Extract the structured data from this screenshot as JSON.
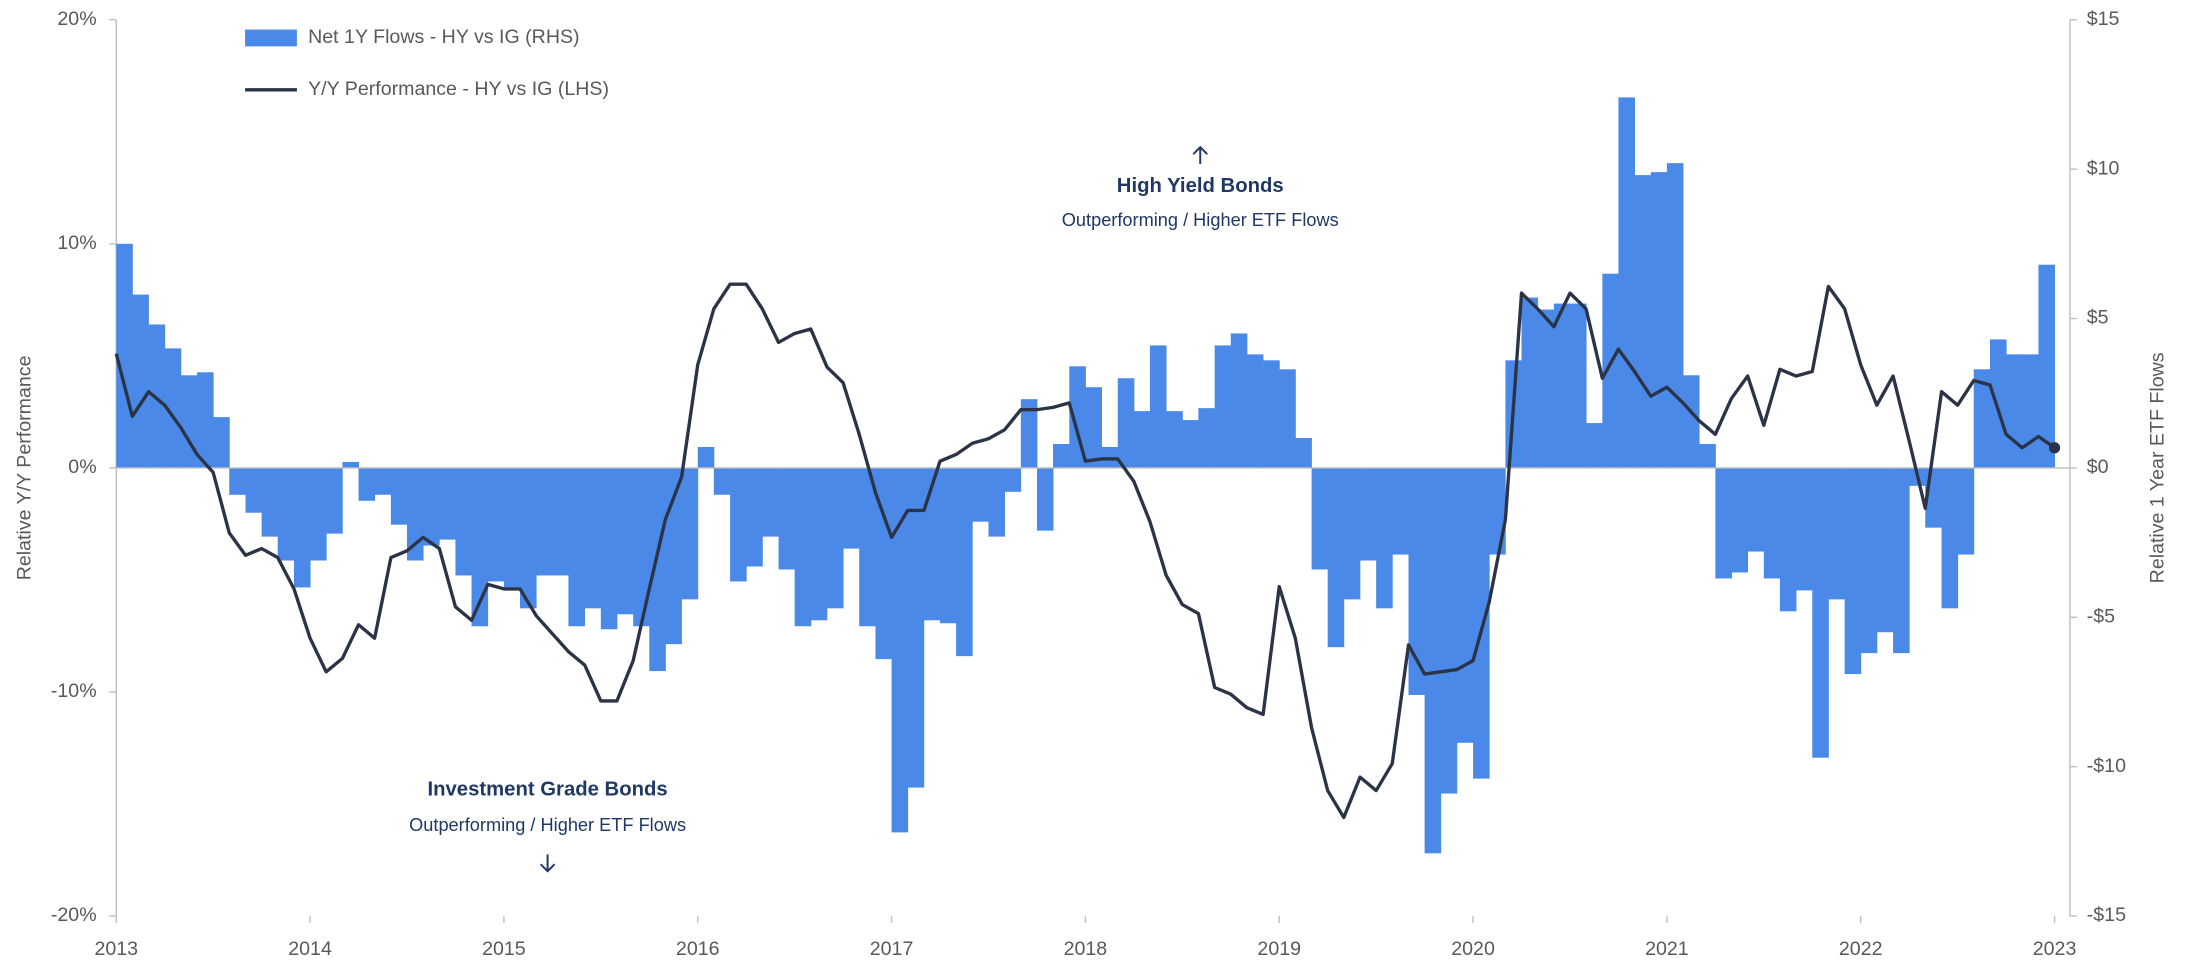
{
  "chart_data": {
    "type": "bar",
    "ylabel": "Relative Y/Y Performance",
    "y2label": "Relative 1 Year ETF Flows",
    "annotations": [
      {
        "title": "High Yield Bonds",
        "text": "Outperforming / Higher ETF Flows"
      },
      {
        "title": "Investment Grade Bonds",
        "text": "Outperforming / Higher ETF Flows"
      }
    ],
    "xlim": [
      2013,
      2023
    ],
    "xticks": [
      2013,
      2014,
      2015,
      2016,
      2017,
      2018,
      2019,
      2020,
      2021,
      2022,
      2023
    ],
    "ylim": [
      -20,
      20
    ],
    "yticks": [
      {
        "value": -20,
        "label": "-20%"
      },
      {
        "value": -10,
        "label": "-10%"
      },
      {
        "value": 0,
        "label": "0%"
      },
      {
        "value": 10,
        "label": "10%"
      },
      {
        "value": 20,
        "label": "20%"
      }
    ],
    "y2lim": [
      -15,
      15
    ],
    "y2ticks": [
      {
        "value": -15,
        "label": "-$15"
      },
      {
        "value": -10,
        "label": "-$10"
      },
      {
        "value": -5,
        "label": "-$5"
      },
      {
        "value": 0,
        "label": "$0"
      },
      {
        "value": 5,
        "label": "$5"
      },
      {
        "value": 10,
        "label": "$10"
      },
      {
        "value": 15,
        "label": "$15"
      }
    ],
    "legend": "top-left",
    "series": [
      {
        "name": "Net 1Y Flows - HY vs IG (RHS)",
        "type": "bar",
        "axis": "y2",
        "color": "#4a89e8",
        "x": [
          2013,
          2013.083,
          2013.167,
          2013.25,
          2013.333,
          2013.417,
          2013.5,
          2013.583,
          2013.667,
          2013.75,
          2013.833,
          2013.917,
          2014,
          2014.083,
          2014.167,
          2014.25,
          2014.333,
          2014.417,
          2014.5,
          2014.583,
          2014.667,
          2014.75,
          2014.833,
          2014.917,
          2015,
          2015.083,
          2015.167,
          2015.25,
          2015.333,
          2015.417,
          2015.5,
          2015.583,
          2015.667,
          2015.75,
          2015.833,
          2015.917,
          2016,
          2016.083,
          2016.167,
          2016.25,
          2016.333,
          2016.417,
          2016.5,
          2016.583,
          2016.667,
          2016.75,
          2016.833,
          2016.917,
          2017,
          2017.083,
          2017.167,
          2017.25,
          2017.333,
          2017.417,
          2017.5,
          2017.583,
          2017.667,
          2017.75,
          2017.833,
          2017.917,
          2018,
          2018.083,
          2018.167,
          2018.25,
          2018.333,
          2018.417,
          2018.5,
          2018.583,
          2018.667,
          2018.75,
          2018.833,
          2018.917,
          2019,
          2019.083,
          2019.167,
          2019.25,
          2019.333,
          2019.417,
          2019.5,
          2019.583,
          2019.667,
          2019.75,
          2019.833,
          2019.917,
          2020,
          2020.083,
          2020.167,
          2020.25,
          2020.333,
          2020.417,
          2020.5,
          2020.583,
          2020.667,
          2020.75,
          2020.833,
          2020.917,
          2021,
          2021.083,
          2021.167,
          2021.25,
          2021.333,
          2021.417,
          2021.5,
          2021.583,
          2021.667,
          2021.75,
          2021.833,
          2021.917,
          2022,
          2022.083,
          2022.167,
          2022.25,
          2022.333,
          2022.417,
          2022.5,
          2022.583,
          2022.667,
          2022.75,
          2022.833,
          2022.917
        ],
        "values": [
          7.5,
          5.8,
          4.8,
          4.0,
          3.1,
          3.2,
          1.7,
          -0.9,
          -1.5,
          -2.3,
          -3.1,
          -4.0,
          -3.1,
          -2.2,
          0.2,
          -1.1,
          -0.9,
          -1.9,
          -3.1,
          -2.6,
          -2.4,
          -3.6,
          -5.3,
          -3.8,
          -4.0,
          -4.7,
          -3.6,
          -3.6,
          -5.3,
          -4.7,
          -5.4,
          -4.9,
          -5.3,
          -6.8,
          -5.9,
          -4.4,
          0.7,
          -0.9,
          -3.8,
          -3.3,
          -2.3,
          -3.4,
          -5.3,
          -5.1,
          -4.7,
          -2.7,
          -5.3,
          -6.4,
          -12.2,
          -10.7,
          -5.1,
          -5.2,
          -6.3,
          -1.8,
          -2.3,
          -0.8,
          2.3,
          -2.1,
          0.8,
          3.4,
          2.7,
          0.7,
          3.0,
          1.9,
          4.1,
          1.9,
          1.6,
          2.0,
          4.1,
          4.5,
          3.8,
          3.6,
          3.3,
          1.0,
          -3.4,
          -6.0,
          -4.4,
          -3.1,
          -4.7,
          -2.9,
          -7.6,
          -12.9,
          -10.9,
          -9.2,
          -10.4,
          -2.9,
          3.6,
          5.7,
          5.3,
          5.5,
          5.5,
          1.5,
          6.5,
          12.4,
          9.8,
          9.9,
          10.2,
          3.1,
          0.8,
          -3.7,
          -3.5,
          -2.8,
          -3.7,
          -4.8,
          -4.1,
          -9.7,
          -4.4,
          -6.9,
          -6.2,
          -5.5,
          -6.2,
          -0.6,
          -2.0,
          -4.7,
          -2.9,
          3.3,
          4.3,
          3.8,
          3.8,
          6.8
        ]
      },
      {
        "name": "Y/Y Performance - HY vs IG (LHS)",
        "type": "line",
        "axis": "y",
        "color": "#2b3447",
        "x": [
          2013,
          2013.083,
          2013.167,
          2013.25,
          2013.333,
          2013.417,
          2013.5,
          2013.583,
          2013.667,
          2013.75,
          2013.833,
          2013.917,
          2014,
          2014.083,
          2014.167,
          2014.25,
          2014.333,
          2014.417,
          2014.5,
          2014.583,
          2014.667,
          2014.75,
          2014.833,
          2014.917,
          2015,
          2015.083,
          2015.167,
          2015.25,
          2015.333,
          2015.417,
          2015.5,
          2015.583,
          2015.667,
          2015.75,
          2015.833,
          2015.917,
          2016,
          2016.083,
          2016.167,
          2016.25,
          2016.333,
          2016.417,
          2016.5,
          2016.583,
          2016.667,
          2016.75,
          2016.833,
          2016.917,
          2017,
          2017.083,
          2017.167,
          2017.25,
          2017.333,
          2017.417,
          2017.5,
          2017.583,
          2017.667,
          2017.75,
          2017.833,
          2017.917,
          2018,
          2018.083,
          2018.167,
          2018.25,
          2018.333,
          2018.417,
          2018.5,
          2018.583,
          2018.667,
          2018.75,
          2018.833,
          2018.917,
          2019,
          2019.083,
          2019.167,
          2019.25,
          2019.333,
          2019.417,
          2019.5,
          2019.583,
          2019.667,
          2019.75,
          2019.833,
          2019.917,
          2020,
          2020.083,
          2020.167,
          2020.25,
          2020.333,
          2020.417,
          2020.5,
          2020.583,
          2020.667,
          2020.75,
          2020.833,
          2020.917,
          2021,
          2021.083,
          2021.167,
          2021.25,
          2021.333,
          2021.417,
          2021.5,
          2021.583,
          2021.667,
          2021.75,
          2021.833,
          2021.917,
          2022,
          2022.083,
          2022.167,
          2022.25,
          2022.333,
          2022.417,
          2022.5,
          2022.583,
          2022.667,
          2022.75,
          2022.833,
          2022.917,
          2023
        ],
        "values": [
          5.1,
          2.3,
          3.4,
          2.8,
          1.8,
          0.6,
          -0.2,
          -2.9,
          -3.9,
          -3.6,
          -4.0,
          -5.4,
          -7.6,
          -9.1,
          -8.5,
          -7.0,
          -7.6,
          -4.0,
          -3.7,
          -3.1,
          -3.6,
          -6.2,
          -6.8,
          -5.2,
          -5.4,
          -5.4,
          -6.6,
          -7.4,
          -8.2,
          -8.8,
          -10.4,
          -10.4,
          -8.6,
          -5.4,
          -2.3,
          -0.4,
          4.6,
          7.1,
          8.2,
          8.2,
          7.1,
          5.6,
          6.0,
          6.2,
          4.5,
          3.8,
          1.5,
          -1.1,
          -3.1,
          -1.9,
          -1.9,
          0.3,
          0.6,
          1.1,
          1.3,
          1.7,
          2.6,
          2.6,
          2.7,
          2.9,
          0.3,
          0.4,
          0.4,
          -0.6,
          -2.4,
          -4.8,
          -6.1,
          -6.5,
          -9.8,
          -10.1,
          -10.7,
          -11.0,
          -5.3,
          -7.6,
          -11.6,
          -14.4,
          -15.6,
          -13.8,
          -14.4,
          -13.2,
          -7.9,
          -9.2,
          -9.1,
          -9.0,
          -8.6,
          -6.0,
          -2.3,
          7.8,
          7.1,
          6.3,
          7.8,
          7.1,
          4.0,
          5.3,
          4.3,
          3.2,
          3.6,
          2.9,
          2.1,
          1.5,
          3.1,
          4.1,
          1.9,
          4.4,
          4.1,
          4.3,
          8.1,
          7.1,
          4.6,
          2.8,
          4.1,
          1.2,
          -1.8,
          3.4,
          2.8,
          3.9,
          3.7,
          1.5,
          0.9,
          1.4,
          0.9
        ]
      }
    ]
  }
}
